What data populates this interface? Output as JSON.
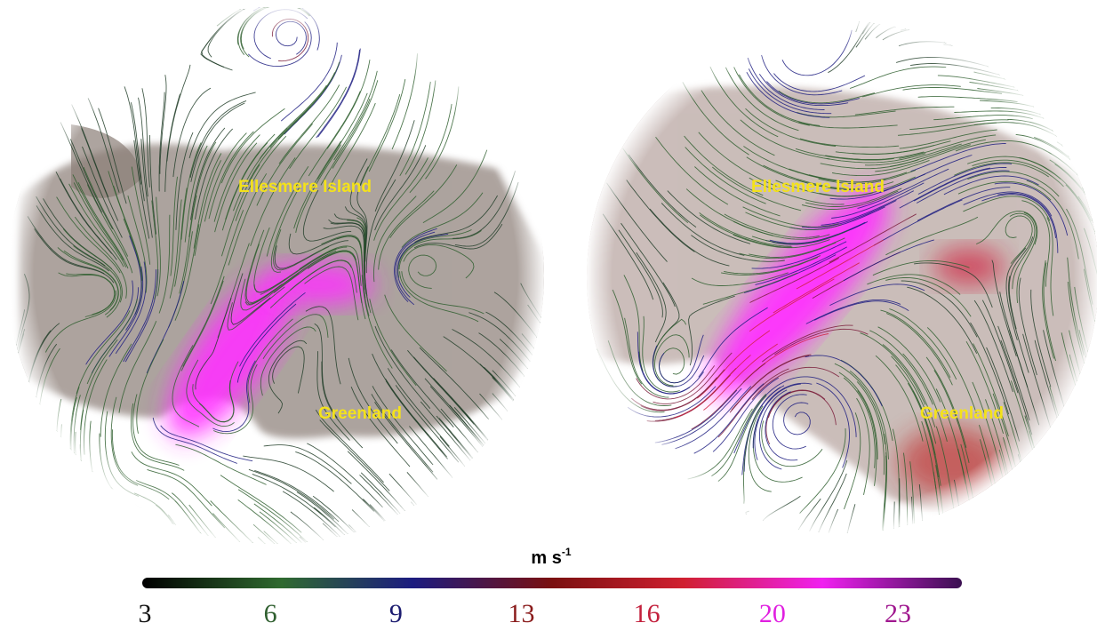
{
  "panels": [
    {
      "labels": [
        "Ellesmere Island",
        "Greenland"
      ]
    },
    {
      "labels": [
        "Ellesmere Island",
        "Greenland"
      ]
    }
  ],
  "colorbar": {
    "unit": {
      "base": "m s",
      "exponent": "-1"
    },
    "ticks": [
      {
        "value": 3,
        "color": "#111111"
      },
      {
        "value": 6,
        "color": "#2f5f2f"
      },
      {
        "value": 9,
        "color": "#1c1c70"
      },
      {
        "value": 13,
        "color": "#8a1c1c"
      },
      {
        "value": 16,
        "color": "#c3203c"
      },
      {
        "value": 20,
        "color": "#e020e0"
      },
      {
        "value": 23,
        "color": "#a0188f"
      }
    ]
  }
}
